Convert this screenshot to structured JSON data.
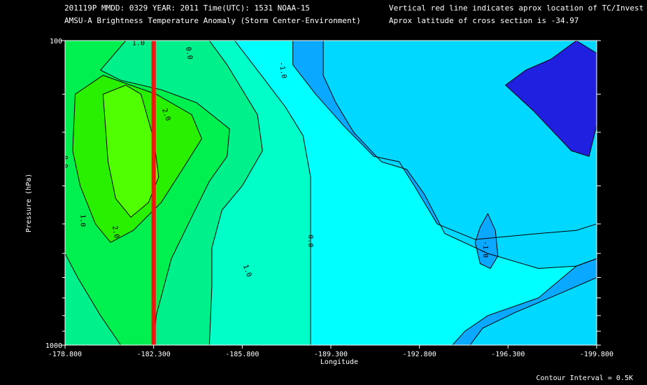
{
  "header": {
    "line1_left": "201119P  MMDD: 0329 YEAR: 2011 Time(UTC): 1531 NOAA-15",
    "line2_left": "AMSU-A Brightness Temperature Anomaly (Storm Center-Environment)",
    "line1_right": "Vertical red line indicates aprox location of TC/Invest",
    "line2_right": "Aprox latitude of cross section is -34.97"
  },
  "footer": {
    "contour_interval": "Contour Interval = 0.5K"
  },
  "colors": {
    "background": "#000000",
    "red_line": "#ff1010",
    "levels": {
      "-2.0": "#2020e0",
      "-1.0": "#0aa8ff",
      "-0.5": "#00d8ff",
      "0.0": "#00ffff",
      "0.5": "#00ffc8",
      "1.0": "#00f08c",
      "1.5": "#00f050",
      "2.0": "#28f000",
      "2.5": "#50ff00"
    }
  },
  "chart_data": {
    "type": "heatmap",
    "title": "AMSU-A Brightness Temperature Anomaly (Storm Center-Environment)",
    "xlabel": "Longitude",
    "ylabel": "Pressure (hPa)",
    "xlim": [
      -178.8,
      -199.8
    ],
    "ylim": [
      1000,
      100
    ],
    "y_scale": "log",
    "x_ticks": [
      "-178.800",
      "-182.300",
      "-185.800",
      "-189.300",
      "-192.800",
      "-196.300",
      "-199.800"
    ],
    "y_ticks": [
      "100",
      "1000"
    ],
    "y_minor_ticks": [
      150,
      200,
      300,
      400,
      500,
      600,
      700,
      800,
      900
    ],
    "tc_longitude": -182.3,
    "contour_interval_K": 0.5,
    "contour_labels": [
      "-1.0",
      "0.0",
      "1.0",
      "2.0",
      "0.0",
      "1.0",
      "2.0",
      "0.0",
      "1.0",
      "-1.0"
    ],
    "bands": [
      {
        "level": -1.0,
        "points": [
          [
            -187.8,
            100
          ],
          [
            -199.8,
            100
          ],
          [
            -199.8,
            1000
          ],
          [
            -194.1,
            1000
          ],
          [
            -194.6,
            900
          ],
          [
            -195.5,
            800
          ],
          [
            -197.5,
            700
          ],
          [
            -199.0,
            550
          ],
          [
            -199.8,
            520
          ],
          [
            -199.8,
            400
          ],
          [
            -199.0,
            420
          ],
          [
            -197.5,
            430
          ],
          [
            -195.0,
            450
          ],
          [
            -193.5,
            400
          ],
          [
            -192.6,
            300
          ],
          [
            -192.0,
            250
          ],
          [
            -191.0,
            240
          ],
          [
            -189.8,
            190
          ],
          [
            -188.7,
            150
          ],
          [
            -187.8,
            120
          ]
        ]
      },
      {
        "level": -0.5,
        "points": [
          [
            -189.0,
            100
          ],
          [
            -199.8,
            100
          ],
          [
            -199.8,
            1000
          ],
          [
            -194.8,
            1000
          ],
          [
            -195.3,
            880
          ],
          [
            -196.6,
            780
          ],
          [
            -198.3,
            680
          ],
          [
            -199.8,
            600
          ],
          [
            -199.8,
            520
          ],
          [
            -199.0,
            550
          ],
          [
            -197.5,
            560
          ],
          [
            -195.5,
            500
          ],
          [
            -193.8,
            430
          ],
          [
            -193.0,
            320
          ],
          [
            -192.3,
            265
          ],
          [
            -191.3,
            250
          ],
          [
            -190.2,
            200
          ],
          [
            -189.5,
            160
          ],
          [
            -189.0,
            130
          ]
        ]
      },
      {
        "level": -2.0,
        "points": [
          [
            -199.0,
            100
          ],
          [
            -199.8,
            110
          ],
          [
            -199.8,
            190
          ],
          [
            -199.5,
            240
          ],
          [
            -198.8,
            230
          ],
          [
            -197.3,
            170
          ],
          [
            -196.2,
            140
          ],
          [
            -197.0,
            125
          ],
          [
            -198.0,
            115
          ]
        ]
      },
      {
        "level": 0.5,
        "points": [
          [
            -178.8,
            100
          ],
          [
            -185.5,
            100
          ],
          [
            -186.4,
            125
          ],
          [
            -187.5,
            165
          ],
          [
            -188.2,
            205
          ],
          [
            -188.5,
            280
          ],
          [
            -188.5,
            1000
          ],
          [
            -178.8,
            1000
          ]
        ]
      },
      {
        "level": 1.0,
        "points": [
          [
            -178.8,
            100
          ],
          [
            -184.5,
            100
          ],
          [
            -185.2,
            120
          ],
          [
            -186.4,
            175
          ],
          [
            -186.6,
            230
          ],
          [
            -185.8,
            300
          ],
          [
            -185.0,
            360
          ],
          [
            -184.6,
            480
          ],
          [
            -184.6,
            640
          ],
          [
            -184.5,
            1000
          ],
          [
            -178.8,
            1000
          ]
        ]
      },
      {
        "level": 1.5,
        "points": [
          [
            -178.8,
            100
          ],
          [
            -181.2,
            100
          ],
          [
            -180.2,
            125
          ],
          [
            -181.0,
            135
          ],
          [
            -182.6,
            145
          ],
          [
            -184.0,
            160
          ],
          [
            -185.3,
            195
          ],
          [
            -185.2,
            240
          ],
          [
            -184.5,
            290
          ],
          [
            -183.8,
            380
          ],
          [
            -183.0,
            520
          ],
          [
            -182.4,
            800
          ],
          [
            -182.3,
            1000
          ],
          [
            -181.0,
            1000
          ],
          [
            -180.2,
            800
          ],
          [
            -179.3,
            600
          ],
          [
            -178.8,
            500
          ]
        ]
      },
      {
        "level": 2.0,
        "points": [
          [
            -179.2,
            150
          ],
          [
            -180.3,
            130
          ],
          [
            -182.4,
            150
          ],
          [
            -183.8,
            175
          ],
          [
            -184.2,
            210
          ],
          [
            -183.5,
            260
          ],
          [
            -182.6,
            340
          ],
          [
            -181.5,
            420
          ],
          [
            -180.6,
            460
          ],
          [
            -180.0,
            400
          ],
          [
            -179.4,
            300
          ],
          [
            -179.1,
            230
          ]
        ]
      },
      {
        "level": 2.5,
        "points": [
          [
            -180.3,
            150
          ],
          [
            -181.2,
            140
          ],
          [
            -181.8,
            150
          ],
          [
            -182.3,
            210
          ],
          [
            -182.5,
            280
          ],
          [
            -182.1,
            340
          ],
          [
            -181.4,
            380
          ],
          [
            -180.8,
            330
          ],
          [
            -180.5,
            250
          ]
        ]
      },
      {
        "level": -1.0,
        "points": [
          [
            -195.2,
            410
          ],
          [
            -195.5,
            370
          ],
          [
            -195.8,
            420
          ],
          [
            -195.9,
            510
          ],
          [
            -195.6,
            560
          ],
          [
            -195.2,
            540
          ],
          [
            -195.0,
            460
          ]
        ]
      }
    ]
  }
}
